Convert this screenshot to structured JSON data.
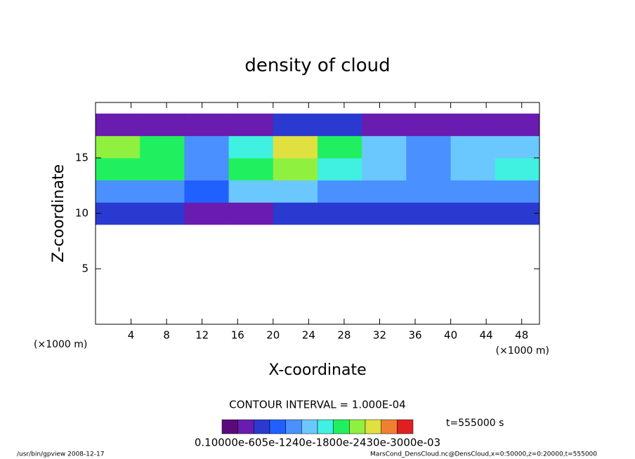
{
  "chart_data": {
    "type": "contour",
    "title": "density of cloud",
    "x_label": "X-coordinate",
    "y_label": "Z-coordinate",
    "x_unit": "(×1000 m)",
    "x_unit_right": "(×1000 m)",
    "xlim": [
      0,
      50
    ],
    "ylim": [
      0,
      20
    ],
    "xticks": [
      4,
      8,
      12,
      16,
      20,
      24,
      28,
      32,
      36,
      40,
      44,
      48
    ],
    "yticks": [
      5,
      10,
      15
    ],
    "x_edges": [
      0,
      5,
      10,
      15,
      20,
      25,
      30,
      35,
      40,
      45,
      50
    ],
    "z_edges": [
      9,
      11,
      13,
      15,
      17,
      19
    ],
    "field": [
      [
        0.0003,
        0.0003,
        0.0002,
        0.0002,
        0.0003,
        0.0003,
        0.0003,
        0.0003,
        0.0003,
        0.0003
      ],
      [
        0.0005,
        0.0005,
        0.0004,
        0.0006,
        0.0006,
        0.0005,
        0.0005,
        0.0005,
        0.0005,
        0.0005
      ],
      [
        0.0008,
        0.0008,
        0.0005,
        0.0008,
        0.0009,
        0.0007,
        0.0006,
        0.0005,
        0.0006,
        0.0007
      ],
      [
        0.0009,
        0.0008,
        0.0005,
        0.0007,
        0.001,
        0.0008,
        0.0006,
        0.0005,
        0.0006,
        0.0006
      ],
      [
        0.0002,
        0.0002,
        0.0002,
        0.0002,
        0.0003,
        0.0003,
        0.0002,
        0.0002,
        0.0002,
        0.0002
      ]
    ],
    "levels": [
      0.0001,
      0.0002,
      0.0003,
      0.0004,
      0.0005,
      0.0006,
      0.0007,
      0.0008,
      0.0009,
      0.001,
      0.0011,
      0.0012
    ],
    "colors": [
      "#5a0a7a",
      "#6a1bb0",
      "#2a3ad0",
      "#2060ff",
      "#4a90ff",
      "#6ac8ff",
      "#40f0e0",
      "#20f060",
      "#90f040",
      "#e0e040",
      "#f08030",
      "#e02020"
    ],
    "contour_interval": "CONTOUR INTERVAL = 1.000E-04",
    "time_label": "t=555000 s",
    "colorbar_labels": "0.10000e-605e-1240e-1800e-2430e-3000e-03",
    "footer_left": "/usr/bin/gpview   2008-12-17",
    "footer_right": "MarsCond_DensCloud.nc@DensCloud,x=0:50000,z=0:20000,t=555000"
  }
}
